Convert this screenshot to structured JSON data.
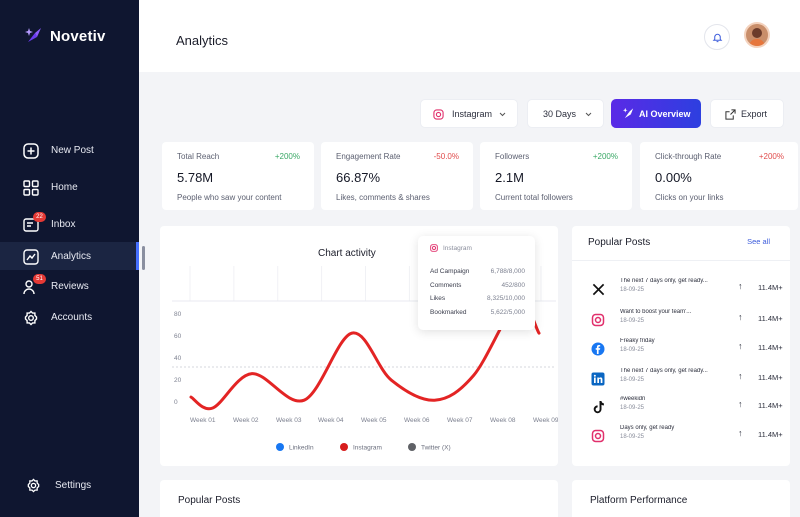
{
  "app": {
    "name": "Novetiv"
  },
  "sidebar": {
    "items": [
      {
        "label": "New Post",
        "icon": "plus-square-icon"
      },
      {
        "label": "Home",
        "icon": "grid-icon"
      },
      {
        "label": "Inbox",
        "icon": "inbox-icon",
        "badge": "22"
      },
      {
        "label": "Analytics",
        "icon": "analytics-icon",
        "active": true
      },
      {
        "label": "Reviews",
        "icon": "users-icon",
        "badge": "51"
      },
      {
        "label": "Accounts",
        "icon": "gear-icon"
      }
    ],
    "settings_label": "Settings"
  },
  "header": {
    "title": "Analytics"
  },
  "toolbar": {
    "platform": "Instagram",
    "range": "30 Days",
    "ai_label": "AI Overview",
    "export_label": "Export"
  },
  "stats": [
    {
      "title": "Total Reach",
      "change": "+200%",
      "value": "5.78M",
      "desc": "People who saw your content"
    },
    {
      "title": "Engagement Rate",
      "change": "-50.0%",
      "value": "66.87%",
      "desc": "Likes, comments & shares"
    },
    {
      "title": "Followers",
      "change": "+200%",
      "value": "2.1M",
      "desc": "Current total followers"
    },
    {
      "title": "Click-through Rate",
      "change": "+200%",
      "value": "0.00%",
      "desc": "Clicks on your links"
    }
  ],
  "chart_data": {
    "type": "line",
    "title": "Chart activity",
    "x": [
      "Week 01",
      "Week 02",
      "Week 03",
      "Week 04",
      "Week 05",
      "Week 06",
      "Week 07",
      "Week 08",
      "Week 09"
    ],
    "y_ticks": [
      "0",
      "20",
      "40",
      "60",
      "80"
    ],
    "ylim": [
      0,
      100
    ],
    "series": [
      {
        "name": "Instagram",
        "color": "#e32424",
        "points": [
          [
            0,
            7
          ],
          [
            0.5,
            0
          ],
          [
            1.4,
            22
          ],
          [
            2.6,
            5
          ],
          [
            3.7,
            48
          ],
          [
            4.6,
            18
          ],
          [
            5.6,
            5
          ],
          [
            6.5,
            21
          ],
          [
            7.5,
            67
          ],
          [
            8,
            48
          ]
        ]
      }
    ],
    "legend": [
      {
        "name": "LinkedIn",
        "color": "#1877f2"
      },
      {
        "name": "Instagram",
        "color": "#d71d1d"
      },
      {
        "name": "Twitter (X)",
        "color": "#5f6166"
      }
    ],
    "legend_position": "bottom",
    "grid": true
  },
  "tooltip": {
    "platform": "Instagram",
    "rows": [
      {
        "label": "Ad Campaign",
        "value": "6,788/8,000"
      },
      {
        "label": "Comments",
        "value": "452/800"
      },
      {
        "label": "Likes",
        "value": "8,325/10,000"
      },
      {
        "label": "Bookmarked",
        "value": "5,622/5,000"
      }
    ]
  },
  "popular_posts": {
    "title": "Popular Posts",
    "see_all": "See all",
    "items": [
      {
        "platform": "x-icon",
        "text": "The next 7 days only, get ready...",
        "date": "18-09-25",
        "value": "11.4M+"
      },
      {
        "platform": "instagram-icon",
        "text": "Want to boost your team'...",
        "date": "18-09-25",
        "value": "11.4M+"
      },
      {
        "platform": "facebook-icon",
        "text": "Freaky friday",
        "date": "18-09-25",
        "value": "11.4M+"
      },
      {
        "platform": "linkedin-icon",
        "text": "The next 7 days only, get ready...",
        "date": "18-09-25",
        "value": "11.4M+"
      },
      {
        "platform": "tiktok-icon",
        "text": "#weekidn",
        "date": "18-09-25",
        "value": "11.4M+"
      },
      {
        "platform": "instagram-icon",
        "text": "Days only, get ready",
        "date": "18-09-25",
        "value": "11.4M+"
      }
    ]
  },
  "bottom": {
    "left_title": "Popular Posts",
    "right_title": "Platform Performance"
  }
}
